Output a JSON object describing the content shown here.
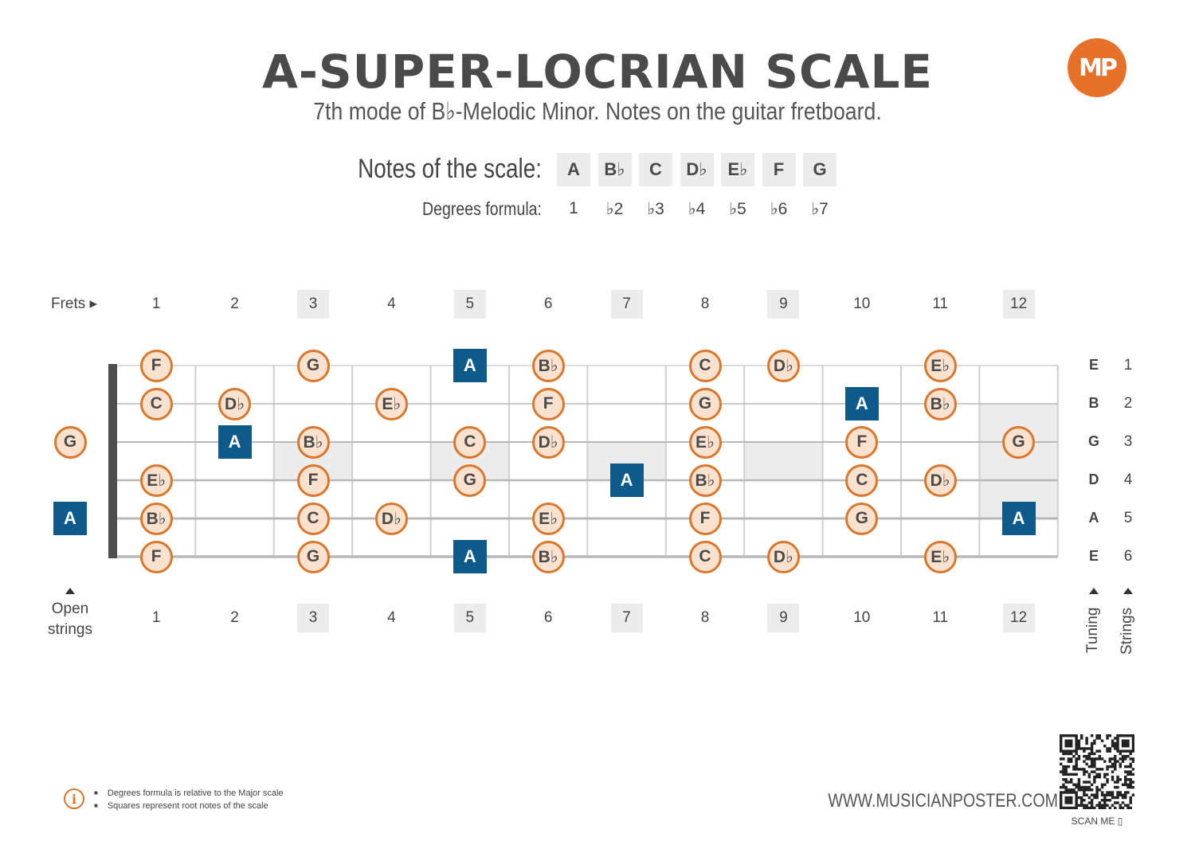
{
  "header": {
    "title": "A-SUPER-LOCRIAN SCALE",
    "subtitle": "7th mode of B♭-Melodic Minor. Notes on the guitar fretboard.",
    "logo_text": "MP",
    "logo_color": "#e8712a"
  },
  "scale": {
    "notes_label": "Notes of the scale:",
    "notes": [
      "A",
      "B♭",
      "C",
      "D♭",
      "E♭",
      "F",
      "G"
    ],
    "degrees_label": "Degrees formula:",
    "degrees": [
      "1",
      "♭2",
      "♭3",
      "♭4",
      "♭5",
      "♭6",
      "♭7"
    ]
  },
  "fretboard": {
    "frets_label": "Frets ▸",
    "fret_numbers": [
      "1",
      "2",
      "3",
      "4",
      "5",
      "6",
      "7",
      "8",
      "9",
      "10",
      "11",
      "12"
    ],
    "marker_frets": [
      3,
      5,
      7,
      9,
      12
    ],
    "open_strings_label_line1": "Open",
    "open_strings_label_line2": "strings",
    "tuning": [
      "E",
      "B",
      "G",
      "D",
      "A",
      "E"
    ],
    "string_numbers": [
      "1",
      "2",
      "3",
      "4",
      "5",
      "6"
    ],
    "tuning_label": "Tuning",
    "strings_label": "Strings",
    "root_color": "#0e5a8a",
    "note_fill": "#fbe2cf",
    "note_border": "#d9782c",
    "positions": [
      {
        "string": 1,
        "fret": 1,
        "note": "F",
        "root": false
      },
      {
        "string": 1,
        "fret": 3,
        "note": "G",
        "root": false
      },
      {
        "string": 1,
        "fret": 5,
        "note": "A",
        "root": true
      },
      {
        "string": 1,
        "fret": 6,
        "note": "B♭",
        "root": false
      },
      {
        "string": 1,
        "fret": 8,
        "note": "C",
        "root": false
      },
      {
        "string": 1,
        "fret": 9,
        "note": "D♭",
        "root": false
      },
      {
        "string": 1,
        "fret": 11,
        "note": "E♭",
        "root": false
      },
      {
        "string": 2,
        "fret": 1,
        "note": "C",
        "root": false
      },
      {
        "string": 2,
        "fret": 2,
        "note": "D♭",
        "root": false
      },
      {
        "string": 2,
        "fret": 4,
        "note": "E♭",
        "root": false
      },
      {
        "string": 2,
        "fret": 6,
        "note": "F",
        "root": false
      },
      {
        "string": 2,
        "fret": 8,
        "note": "G",
        "root": false
      },
      {
        "string": 2,
        "fret": 10,
        "note": "A",
        "root": true
      },
      {
        "string": 2,
        "fret": 11,
        "note": "B♭",
        "root": false
      },
      {
        "string": 3,
        "fret": 0,
        "note": "G",
        "root": false
      },
      {
        "string": 3,
        "fret": 2,
        "note": "A",
        "root": true
      },
      {
        "string": 3,
        "fret": 3,
        "note": "B♭",
        "root": false
      },
      {
        "string": 3,
        "fret": 5,
        "note": "C",
        "root": false
      },
      {
        "string": 3,
        "fret": 6,
        "note": "D♭",
        "root": false
      },
      {
        "string": 3,
        "fret": 8,
        "note": "E♭",
        "root": false
      },
      {
        "string": 3,
        "fret": 10,
        "note": "F",
        "root": false
      },
      {
        "string": 3,
        "fret": 12,
        "note": "G",
        "root": false
      },
      {
        "string": 4,
        "fret": 1,
        "note": "E♭",
        "root": false
      },
      {
        "string": 4,
        "fret": 3,
        "note": "F",
        "root": false
      },
      {
        "string": 4,
        "fret": 5,
        "note": "G",
        "root": false
      },
      {
        "string": 4,
        "fret": 7,
        "note": "A",
        "root": true
      },
      {
        "string": 4,
        "fret": 8,
        "note": "B♭",
        "root": false
      },
      {
        "string": 4,
        "fret": 10,
        "note": "C",
        "root": false
      },
      {
        "string": 4,
        "fret": 11,
        "note": "D♭",
        "root": false
      },
      {
        "string": 5,
        "fret": 0,
        "note": "A",
        "root": true
      },
      {
        "string": 5,
        "fret": 1,
        "note": "B♭",
        "root": false
      },
      {
        "string": 5,
        "fret": 3,
        "note": "C",
        "root": false
      },
      {
        "string": 5,
        "fret": 4,
        "note": "D♭",
        "root": false
      },
      {
        "string": 5,
        "fret": 6,
        "note": "E♭",
        "root": false
      },
      {
        "string": 5,
        "fret": 8,
        "note": "F",
        "root": false
      },
      {
        "string": 5,
        "fret": 10,
        "note": "G",
        "root": false
      },
      {
        "string": 5,
        "fret": 12,
        "note": "A",
        "root": true
      },
      {
        "string": 6,
        "fret": 1,
        "note": "F",
        "root": false
      },
      {
        "string": 6,
        "fret": 3,
        "note": "G",
        "root": false
      },
      {
        "string": 6,
        "fret": 5,
        "note": "A",
        "root": true
      },
      {
        "string": 6,
        "fret": 6,
        "note": "B♭",
        "root": false
      },
      {
        "string": 6,
        "fret": 8,
        "note": "C",
        "root": false
      },
      {
        "string": 6,
        "fret": 9,
        "note": "D♭",
        "root": false
      },
      {
        "string": 6,
        "fret": 11,
        "note": "E♭",
        "root": false
      }
    ]
  },
  "footer": {
    "info_icon": "info-icon",
    "note1": "Degrees formula is relative to the Major scale",
    "note2": "Squares represent root notes of the scale",
    "website": "WWW.MUSICIANPOSTER.COM",
    "scan_me": "SCAN ME"
  }
}
